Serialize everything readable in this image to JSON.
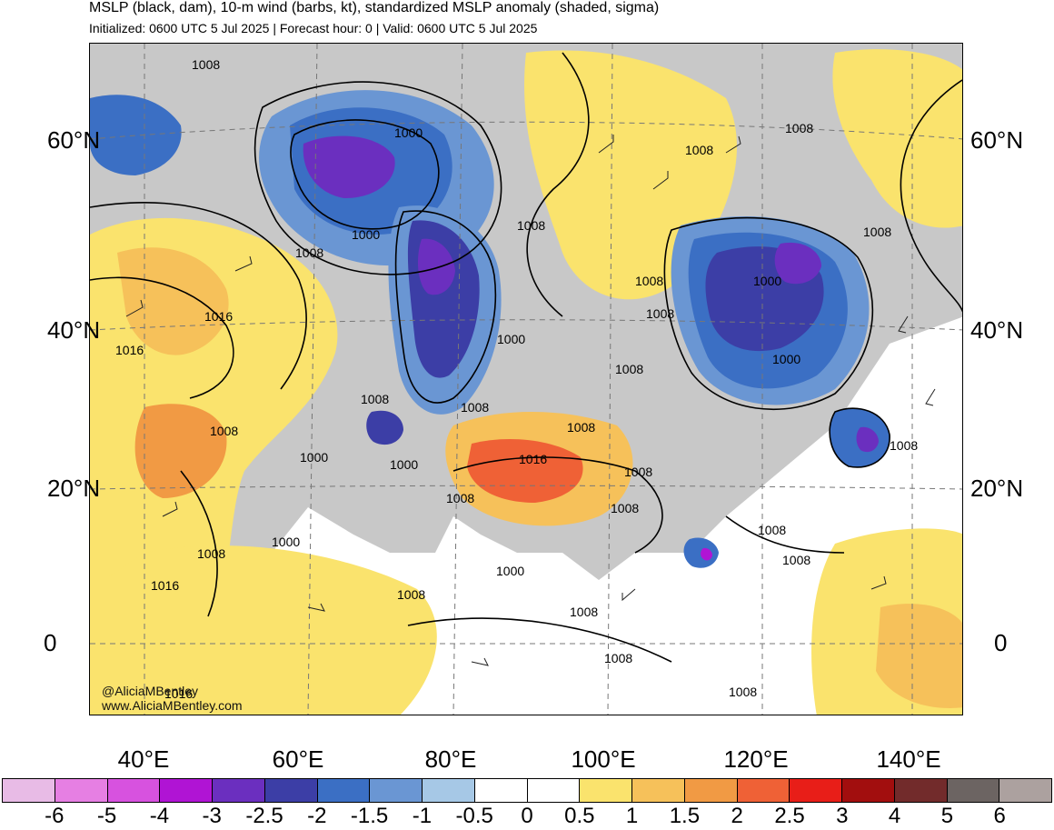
{
  "header": {
    "title": "MSLP (black, dam), 10-m wind (barbs, kt), standardized MSLP anomaly (shaded, sigma)",
    "subtitle": "Initialized: 0600 UTC 5 Jul 2025 | Forecast hour: 0 | Valid: 0600 UTC 5 Jul 2025"
  },
  "map": {
    "lat_labels": [
      "60°N",
      "40°N",
      "20°N",
      "0"
    ],
    "lon_labels": [
      "40°E",
      "60°E",
      "80°E",
      "100°E",
      "120°E",
      "140°E"
    ],
    "isobar_labels": [
      "1008",
      "1000",
      "1008",
      "1008",
      "1008",
      "1008",
      "1000",
      "1008",
      "1016",
      "1016",
      "1000",
      "1008",
      "1008",
      "1000",
      "1000",
      "1008",
      "1008",
      "1008",
      "1000",
      "1008",
      "1008",
      "1008",
      "1008",
      "1000",
      "1016",
      "1008",
      "1008",
      "1008",
      "1008",
      "1000",
      "1008",
      "1016",
      "1000",
      "1008",
      "1008",
      "1008",
      "1008",
      "1016"
    ],
    "credit_handle": "@AliciaMBentley",
    "credit_url": "www.AliciaMBentley.com",
    "colors": {
      "land_gray": "#c8c8c8",
      "low_blue": "#3a5fc0",
      "low_purple": "#6a2cc4",
      "high_yellow": "#f8e27a",
      "high_orange": "#f0a040",
      "high_red": "#e8442a"
    }
  },
  "colorbar": {
    "ticks": [
      "-6",
      "-5",
      "-4",
      "-3",
      "-2.5",
      "-2",
      "-1.5",
      "-1",
      "-0.5",
      "0",
      "0.5",
      "1",
      "1.5",
      "2",
      "2.5",
      "3",
      "4",
      "5",
      "6"
    ],
    "colors": [
      "#e8bbe6",
      "#e67fe3",
      "#d752df",
      "#b014d4",
      "#6b2fbf",
      "#3c3ea6",
      "#3b6fc4",
      "#6a96d3",
      "#a6c8e6",
      "#ffffff",
      "#ffffff",
      "#fae36d",
      "#f6c15a",
      "#f19a44",
      "#ef6136",
      "#e81e18",
      "#a20e0e",
      "#722b2b",
      "#6c6462",
      "#aca19f"
    ]
  }
}
